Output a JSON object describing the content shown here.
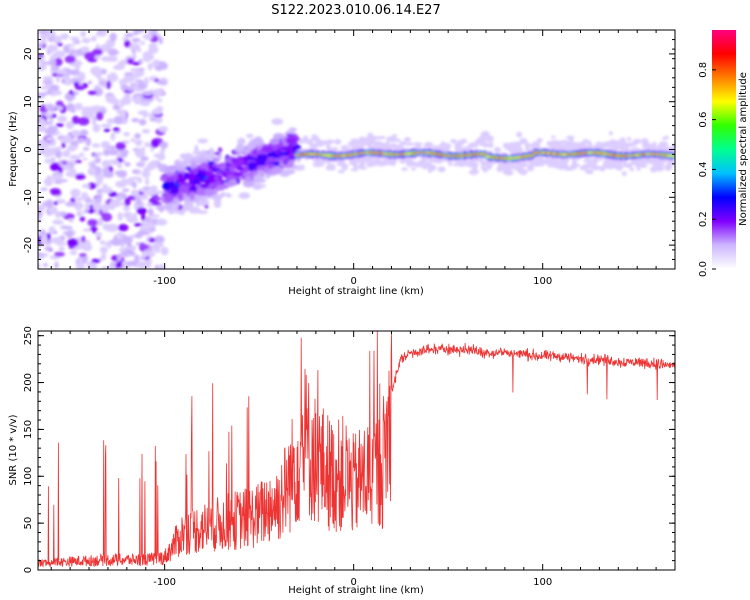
{
  "title": "S122.2023.010.06.14.E27",
  "chart_data": [
    {
      "type": "heatmap",
      "xlabel": "Height of straight line (km)",
      "ylabel": "Frequency (Hz)",
      "xlim": [
        -167,
        170
      ],
      "ylim": [
        -25,
        25
      ],
      "xticks": [
        -100,
        0,
        100
      ],
      "yticks": [
        -20,
        -10,
        0,
        10,
        20
      ],
      "colorbar": {
        "label": "Normalized spectral amplitude",
        "range": [
          0,
          0.96
        ],
        "ticks": [
          "0.0",
          "0.2",
          "0.4",
          "0.6",
          "0.8"
        ],
        "colors": [
          "#ffffff",
          "#cdb6ff",
          "#8000ff",
          "#0000ff",
          "#00c0ff",
          "#00ff90",
          "#30ff00",
          "#ffff00",
          "#ff8000",
          "#ff0000",
          "#ff0080"
        ]
      },
      "features": [
        {
          "region": "x -167 to -100",
          "frequency_range": [
            -25,
            25
          ],
          "amplitude": "low, scattered"
        },
        {
          "region": "x -100 to -30",
          "frequency_trend": [
            [
              -100,
              -8
            ],
            [
              -70,
              -5
            ],
            [
              -40,
              -1
            ],
            [
              -30,
              0
            ]
          ],
          "amplitude": "medium"
        },
        {
          "region": "x -30 to 170",
          "frequency": -1,
          "amplitude": "high, narrow band"
        }
      ]
    },
    {
      "type": "line",
      "xlabel": "Height of straight line (km)",
      "ylabel": "SNR (10 * v/v)",
      "xlim": [
        -167,
        170
      ],
      "ylim": [
        0,
        255
      ],
      "xticks": [
        -100,
        0,
        100
      ],
      "yticks": [
        0,
        50,
        100,
        150,
        200,
        250
      ],
      "color": "#ee3333",
      "series": [
        {
          "x": [
            -167,
            -150,
            -130,
            -110,
            -100,
            -95,
            -90,
            -80,
            -70,
            -60,
            -50,
            -45,
            -40,
            -35,
            -30,
            -25,
            -20,
            -15,
            -10,
            -5,
            0,
            5,
            10,
            15,
            20,
            25,
            30,
            40,
            50,
            60,
            70,
            80,
            90,
            100,
            110,
            120,
            130,
            140,
            150,
            160,
            170
          ],
          "values": [
            8,
            10,
            12,
            12,
            15,
            30,
            45,
            50,
            55,
            60,
            65,
            75,
            80,
            100,
            130,
            150,
            130,
            120,
            110,
            115,
            100,
            110,
            115,
            120,
            190,
            225,
            232,
            235,
            236,
            235,
            232,
            232,
            230,
            228,
            228,
            225,
            225,
            222,
            222,
            220,
            218
          ]
        }
      ]
    }
  ]
}
